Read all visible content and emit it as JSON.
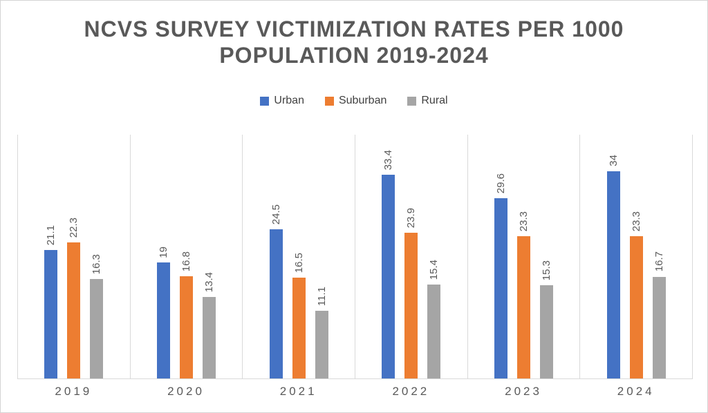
{
  "title": "NCVS SURVEY VICTIMIZATION RATES PER 1000 POPULATION 2019-2024",
  "chart_data": {
    "type": "bar",
    "title": "NCVS SURVEY VICTIMIZATION RATES PER 1000 POPULATION 2019-2024",
    "categories": [
      "2019",
      "2020",
      "2021",
      "2022",
      "2023",
      "2024"
    ],
    "series": [
      {
        "name": "Urban",
        "color": "#4472C4",
        "values": [
          21.1,
          19,
          24.5,
          33.4,
          29.6,
          34
        ]
      },
      {
        "name": "Suburban",
        "color": "#ED7D31",
        "values": [
          22.3,
          16.8,
          16.5,
          23.9,
          23.3,
          23.3
        ]
      },
      {
        "name": "Rural",
        "color": "#A5A5A5",
        "values": [
          16.3,
          13.4,
          11.1,
          15.4,
          15.3,
          16.7
        ]
      }
    ],
    "xlabel": "",
    "ylabel": "",
    "ylim": [
      0,
      40
    ],
    "y_axis_visible": false,
    "grid": "vertical category separators only",
    "legend_position": "top",
    "data_labels": true,
    "data_label_rotation": -90
  },
  "colors": {
    "title_text": "#595959",
    "legend_text": "#404040",
    "data_label_text": "#595959",
    "axis_label_text": "#595959",
    "gridline": "#D9D9D9",
    "frame_border": "#D4D4D4",
    "background": "#FFFFFF"
  }
}
